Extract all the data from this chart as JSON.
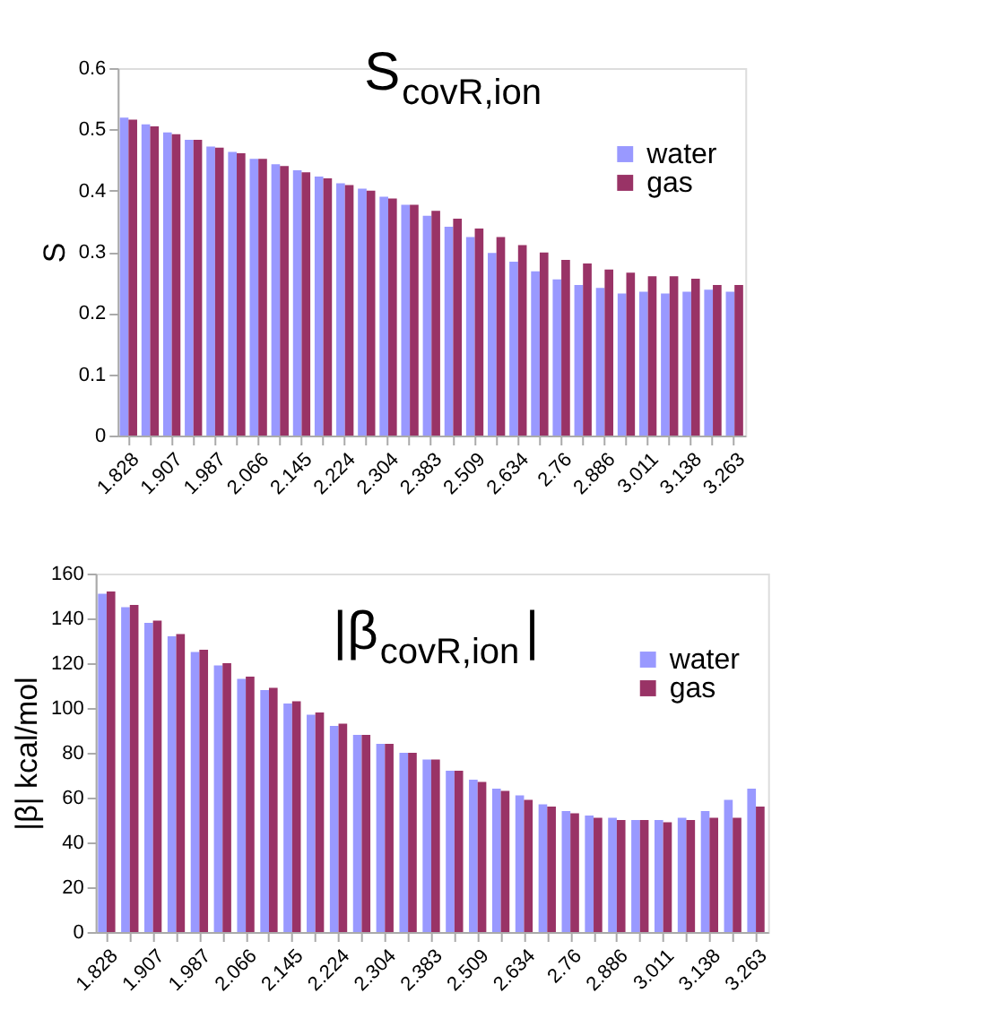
{
  "chart_data": [
    {
      "type": "bar",
      "title": "S$_{covR,ion}$",
      "ylabel": "S",
      "categories": [
        "1.828",
        null,
        "1.907",
        null,
        "1.987",
        null,
        "2.066",
        null,
        "2.145",
        null,
        "2.224",
        null,
        "2.304",
        null,
        "2.383",
        null,
        "2.509",
        null,
        "2.634",
        null,
        "2.76",
        null,
        "2.886",
        null,
        "3.011",
        null,
        "3.138",
        null,
        "3.263"
      ],
      "series": [
        {
          "name": "water",
          "color": "#9999ff",
          "values": [
            0.519,
            0.508,
            0.495,
            0.483,
            0.472,
            0.463,
            0.452,
            0.443,
            0.433,
            0.423,
            0.412,
            0.403,
            0.39,
            0.377,
            0.359,
            0.341,
            0.324,
            0.298,
            0.284,
            0.268,
            0.255,
            0.246,
            0.241,
            0.232,
            0.235,
            0.232,
            0.235,
            0.238,
            0.235
          ]
        },
        {
          "name": "gas",
          "color": "#993366",
          "values": [
            0.516,
            0.505,
            0.492,
            0.483,
            0.47,
            0.461,
            0.452,
            0.44,
            0.43,
            0.42,
            0.409,
            0.4,
            0.387,
            0.377,
            0.367,
            0.354,
            0.338,
            0.324,
            0.311,
            0.299,
            0.287,
            0.281,
            0.271,
            0.266,
            0.26,
            0.26,
            0.256,
            0.246,
            0.246
          ]
        }
      ],
      "ylim": [
        0,
        0.6
      ],
      "yticks": [
        0,
        0.1,
        0.2,
        0.3,
        0.4,
        0.5,
        0.6
      ],
      "grid": false,
      "legend": "right"
    },
    {
      "type": "bar",
      "title": "|β$_{covR,ion}$|",
      "ylabel": "|β| kcal/mol",
      "categories": [
        "1.828",
        null,
        "1.907",
        null,
        "1.987",
        null,
        "2.066",
        null,
        "2.145",
        null,
        "2.224",
        null,
        "2.304",
        null,
        "2.383",
        null,
        "2.509",
        null,
        "2.634",
        null,
        "2.76",
        null,
        "2.886",
        null,
        "3.011",
        null,
        "3.138",
        null,
        "3.263"
      ],
      "series": [
        {
          "name": "water",
          "color": "#9999ff",
          "values": [
            151,
            145,
            138,
            132,
            125,
            119,
            113,
            108,
            102,
            97,
            92,
            88,
            84,
            80,
            77,
            72,
            68,
            64,
            61,
            57,
            54,
            52,
            51,
            50,
            50,
            51,
            54,
            59,
            64
          ]
        },
        {
          "name": "gas",
          "color": "#993366",
          "values": [
            152,
            146,
            139,
            133,
            126,
            120,
            114,
            109,
            103,
            98,
            93,
            88,
            84,
            80,
            77,
            72,
            67,
            63,
            59,
            56,
            53,
            51,
            50,
            50,
            49,
            50,
            51,
            51,
            56
          ]
        }
      ],
      "ylim": [
        0,
        160
      ],
      "yticks": [
        0,
        20,
        40,
        60,
        80,
        100,
        120,
        140,
        160
      ],
      "grid": false,
      "legend": "right"
    }
  ]
}
